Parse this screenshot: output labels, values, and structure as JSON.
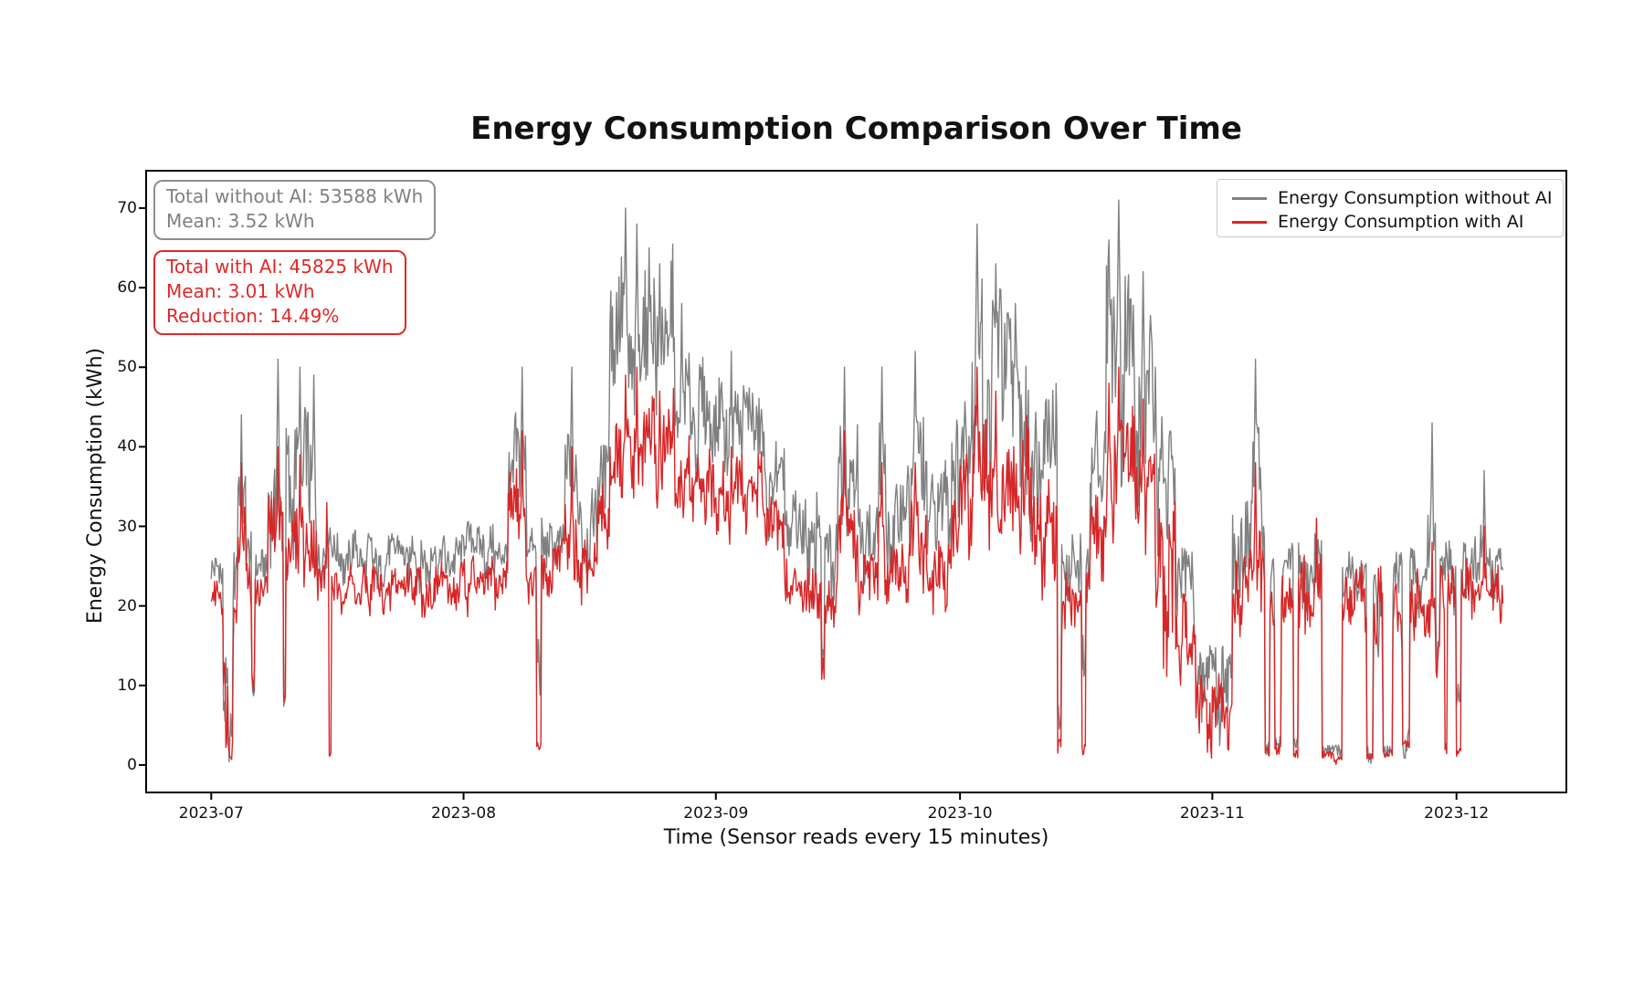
{
  "figure": {
    "title": "Energy Consumption Comparison Over Time"
  },
  "axes": {
    "xlabel": "Time (Sensor reads every 15 minutes)",
    "ylabel": "Energy Consumption (kWh)",
    "x_tick_labels": [
      "2023-07",
      "2023-08",
      "2023-09",
      "2023-10",
      "2023-11",
      "2023-12"
    ],
    "x_tick_days": [
      0,
      31,
      62,
      92,
      123,
      153
    ],
    "y_tick_values": [
      0,
      10,
      20,
      30,
      40,
      50,
      60,
      70
    ]
  },
  "annotations": {
    "without_ai": {
      "line1": "Total without AI: 53588 kWh",
      "line2": "Mean: 3.52 kWh",
      "color": "#808080",
      "border_color": "#8e8e8e"
    },
    "with_ai": {
      "line1": "Total with AI: 45825 kWh",
      "line2": "Mean: 3.01 kWh",
      "line3": "Reduction: 14.49%",
      "color": "#e02828",
      "border_color": "#e02828"
    }
  },
  "legend": {
    "position": "upper right",
    "items": [
      {
        "label": "Energy Consumption without AI",
        "color": "#808080"
      },
      {
        "label": "Energy Consumption with AI",
        "color": "#d62728"
      }
    ]
  },
  "chart_data": {
    "type": "line",
    "title": "Energy Consumption Comparison Over Time",
    "xlabel": "Time (Sensor reads every 15 minutes)",
    "ylabel": "Energy Consumption (kWh)",
    "grid": false,
    "legend_position": "upper right",
    "x_axis": {
      "unit": "days since 2023-07-01",
      "tick_labels": [
        "2023-07",
        "2023-08",
        "2023-09",
        "2023-10",
        "2023-11",
        "2023-12"
      ],
      "tick_days": [
        0,
        31,
        62,
        92,
        123,
        153
      ],
      "xlim_days": [
        -8,
        166.5
      ],
      "data_start_day": 0,
      "data_end_day": 158.7
    },
    "ylim": [
      -3.45,
      74.7
    ],
    "sampling": {
      "description": "Sensor reads every 15 minutes (~15224 readings, 2023-07-01 to 2023-12-07). Dense noisy series encoded as piecewise envelopes [startDay,endDay,min_kWh,max_kWh] plus notable peaks [day,kWh].",
      "render_step_days": 0.1
    },
    "stats": {
      "total_without_ai_kwh": 53588,
      "mean_without_ai_kwh": 3.52,
      "total_with_ai_kwh": 45825,
      "mean_with_ai_kwh": 3.01,
      "reduction_pct": 14.49
    },
    "series": [
      {
        "name": "Energy Consumption without AI",
        "color": "#808080",
        "envelope": [
          [
            0,
            1.5,
            20,
            28
          ],
          [
            1.5,
            2.1,
            0,
            22
          ],
          [
            2.1,
            2.7,
            0,
            8
          ],
          [
            2.7,
            3.3,
            14,
            30
          ],
          [
            3.3,
            4.3,
            24,
            40
          ],
          [
            4.3,
            5.0,
            20,
            30
          ],
          [
            5.0,
            5.4,
            3,
            12
          ],
          [
            5.4,
            7.0,
            21,
            29
          ],
          [
            7.0,
            8.9,
            24,
            45
          ],
          [
            8.9,
            9.2,
            2,
            15
          ],
          [
            9.2,
            13.0,
            24,
            46
          ],
          [
            13.0,
            14.7,
            22,
            32
          ],
          [
            14.7,
            31.0,
            21,
            30
          ],
          [
            31.0,
            36.5,
            22,
            31
          ],
          [
            36.5,
            38.8,
            25,
            46
          ],
          [
            38.8,
            40.0,
            22,
            30
          ],
          [
            40.0,
            40.6,
            2,
            22
          ],
          [
            40.6,
            43.5,
            23,
            33
          ],
          [
            43.5,
            45.0,
            24,
            44
          ],
          [
            45.0,
            47.5,
            22,
            36
          ],
          [
            47.5,
            49.0,
            28,
            46
          ],
          [
            49.0,
            57.0,
            36,
            66
          ],
          [
            57.0,
            61.5,
            32,
            52
          ],
          [
            61.5,
            68.0,
            34,
            50
          ],
          [
            68.0,
            70.5,
            26,
            44
          ],
          [
            70.5,
            75.0,
            20,
            36
          ],
          [
            75.0,
            75.4,
            9,
            18
          ],
          [
            75.4,
            77.0,
            18,
            32
          ],
          [
            77.0,
            79.5,
            22,
            46
          ],
          [
            79.5,
            82.0,
            18,
            34
          ],
          [
            82.0,
            83.0,
            24,
            46
          ],
          [
            83.0,
            86.0,
            20,
            38
          ],
          [
            86.0,
            88.0,
            24,
            48
          ],
          [
            88.0,
            91.0,
            22,
            40
          ],
          [
            91.0,
            93.5,
            28,
            52
          ],
          [
            93.5,
            100.5,
            30,
            62
          ],
          [
            100.5,
            104.0,
            24,
            50
          ],
          [
            104.0,
            104.5,
            0,
            8
          ],
          [
            104.5,
            107.0,
            17,
            30
          ],
          [
            107.0,
            107.5,
            2,
            18
          ],
          [
            107.5,
            108.0,
            18,
            30
          ],
          [
            108.0,
            110.0,
            24,
            46
          ],
          [
            110.0,
            113.5,
            34,
            66
          ],
          [
            113.5,
            116.0,
            28,
            58
          ],
          [
            116.0,
            118.5,
            20,
            46
          ],
          [
            118.5,
            121.0,
            14,
            30
          ],
          [
            121.0,
            123.0,
            0,
            22
          ],
          [
            123.0,
            125.5,
            0,
            18
          ],
          [
            125.5,
            128.0,
            18,
            40
          ],
          [
            128.0,
            129.5,
            22,
            44
          ],
          [
            129.5,
            130.1,
            0,
            4
          ],
          [
            130.1,
            130.7,
            12,
            28
          ],
          [
            130.7,
            131.5,
            0,
            5
          ],
          [
            131.5,
            133.0,
            18,
            30
          ],
          [
            133.0,
            133.6,
            0,
            4
          ],
          [
            133.6,
            136.5,
            16,
            30
          ],
          [
            136.5,
            139.0,
            0,
            3
          ],
          [
            139.0,
            142.0,
            16,
            28
          ],
          [
            142.0,
            142.8,
            0,
            3
          ],
          [
            142.8,
            144.0,
            10,
            29
          ],
          [
            144.0,
            145.2,
            0,
            3
          ],
          [
            145.2,
            146.4,
            12,
            28
          ],
          [
            146.4,
            147.3,
            0,
            5
          ],
          [
            147.3,
            149.5,
            16,
            28
          ],
          [
            149.5,
            150.5,
            15,
            35
          ],
          [
            150.5,
            151.0,
            6,
            18
          ],
          [
            151.0,
            153.0,
            17,
            29
          ],
          [
            153.0,
            153.6,
            1,
            15
          ],
          [
            153.6,
            156.0,
            18,
            30
          ],
          [
            156.0,
            156.7,
            20,
            32
          ],
          [
            156.7,
            158.7,
            19,
            29
          ]
        ],
        "peaks": [
          [
            3.7,
            44
          ],
          [
            8.2,
            51
          ],
          [
            10.9,
            50
          ],
          [
            12.6,
            49
          ],
          [
            38.2,
            50
          ],
          [
            44.3,
            50
          ],
          [
            50.9,
            70
          ],
          [
            52.3,
            68
          ],
          [
            53.8,
            65
          ],
          [
            55.1,
            63
          ],
          [
            57.8,
            58
          ],
          [
            63.9,
            52
          ],
          [
            77.8,
            50
          ],
          [
            82.4,
            50
          ],
          [
            86.5,
            52
          ],
          [
            94.1,
            68
          ],
          [
            96.4,
            63
          ],
          [
            98.8,
            58
          ],
          [
            110.3,
            66
          ],
          [
            111.5,
            71
          ],
          [
            114.5,
            62
          ],
          [
            116.0,
            50
          ],
          [
            128.3,
            51
          ],
          [
            135.8,
            31
          ],
          [
            150.0,
            43
          ],
          [
            156.4,
            37
          ]
        ]
      },
      {
        "name": "Energy Consumption with AI",
        "color": "#d62728",
        "envelope": [
          [
            0,
            1.5,
            17,
            24
          ],
          [
            1.5,
            2.1,
            0,
            18
          ],
          [
            2.1,
            2.7,
            0,
            6
          ],
          [
            2.7,
            3.3,
            12,
            26
          ],
          [
            3.3,
            4.3,
            20,
            34
          ],
          [
            4.3,
            5.0,
            17,
            26
          ],
          [
            5.0,
            5.4,
            8,
            18
          ],
          [
            5.4,
            7.0,
            18,
            25
          ],
          [
            7.0,
            8.9,
            20,
            36
          ],
          [
            8.9,
            9.2,
            2,
            12
          ],
          [
            9.2,
            13.0,
            20,
            37
          ],
          [
            13.0,
            14.0,
            18,
            28
          ],
          [
            14.0,
            14.45,
            16,
            30
          ],
          [
            14.45,
            14.75,
            0,
            2
          ],
          [
            14.75,
            31.0,
            17,
            26
          ],
          [
            31.0,
            36.5,
            18,
            27
          ],
          [
            36.5,
            38.8,
            20,
            38
          ],
          [
            38.8,
            40.0,
            17,
            26
          ],
          [
            40.0,
            40.6,
            0,
            3
          ],
          [
            40.6,
            43.5,
            19,
            29
          ],
          [
            43.5,
            45.0,
            20,
            36
          ],
          [
            45.0,
            47.5,
            18,
            30
          ],
          [
            47.5,
            49.0,
            22,
            38
          ],
          [
            49.0,
            57.0,
            28,
            48
          ],
          [
            57.0,
            61.5,
            26,
            42
          ],
          [
            61.5,
            68.0,
            26,
            40
          ],
          [
            68.0,
            70.5,
            22,
            35
          ],
          [
            70.5,
            75.0,
            17,
            28
          ],
          [
            75.0,
            75.4,
            10,
            17
          ],
          [
            75.4,
            77.0,
            15,
            25
          ],
          [
            77.0,
            79.5,
            18,
            36
          ],
          [
            79.5,
            82.0,
            15,
            27
          ],
          [
            82.0,
            83.0,
            18,
            34
          ],
          [
            83.0,
            86.0,
            17,
            29
          ],
          [
            86.0,
            88.0,
            18,
            36
          ],
          [
            88.0,
            91.0,
            17,
            30
          ],
          [
            91.0,
            93.5,
            22,
            40
          ],
          [
            93.5,
            100.5,
            24,
            46
          ],
          [
            100.5,
            104.0,
            19,
            38
          ],
          [
            104.0,
            104.5,
            0,
            4
          ],
          [
            104.5,
            107.0,
            14,
            25
          ],
          [
            107.0,
            107.5,
            0,
            4
          ],
          [
            107.5,
            108.0,
            15,
            25
          ],
          [
            108.0,
            110.0,
            19,
            36
          ],
          [
            110.0,
            113.5,
            26,
            48
          ],
          [
            113.5,
            116.0,
            22,
            44
          ],
          [
            116.0,
            118.5,
            8,
            36
          ],
          [
            118.5,
            121.0,
            5,
            22
          ],
          [
            121.0,
            123.0,
            0,
            15
          ],
          [
            123.0,
            125.5,
            0,
            12
          ],
          [
            125.5,
            128.0,
            14,
            32
          ],
          [
            128.0,
            129.5,
            16,
            34
          ],
          [
            129.5,
            130.1,
            0,
            3
          ],
          [
            130.1,
            130.7,
            10,
            24
          ],
          [
            130.7,
            131.5,
            0,
            4
          ],
          [
            131.5,
            133.0,
            15,
            27
          ],
          [
            133.0,
            133.6,
            0,
            3
          ],
          [
            133.6,
            136.5,
            14,
            28
          ],
          [
            136.5,
            139.0,
            0,
            2
          ],
          [
            139.0,
            142.0,
            14,
            26
          ],
          [
            142.0,
            142.8,
            0,
            2
          ],
          [
            142.8,
            144.0,
            9,
            27
          ],
          [
            144.0,
            145.2,
            0,
            2
          ],
          [
            145.2,
            146.4,
            10,
            26
          ],
          [
            146.4,
            147.3,
            0,
            4
          ],
          [
            147.3,
            149.5,
            14,
            26
          ],
          [
            149.5,
            150.5,
            13,
            27
          ],
          [
            150.5,
            151.0,
            5,
            16
          ],
          [
            151.0,
            151.6,
            14,
            26
          ],
          [
            151.6,
            151.9,
            0,
            3
          ],
          [
            151.9,
            153.0,
            14,
            26
          ],
          [
            153.0,
            153.6,
            0,
            3
          ],
          [
            153.6,
            156.0,
            15,
            27
          ],
          [
            156.0,
            156.7,
            17,
            29
          ],
          [
            156.7,
            158.7,
            16,
            27
          ]
        ],
        "peaks": [
          [
            3.7,
            38
          ],
          [
            8.2,
            40
          ],
          [
            10.9,
            39
          ],
          [
            14.2,
            33
          ],
          [
            38.2,
            42
          ],
          [
            44.3,
            40
          ],
          [
            50.9,
            49
          ],
          [
            52.3,
            50
          ],
          [
            55.1,
            47
          ],
          [
            63.9,
            40
          ],
          [
            77.8,
            42
          ],
          [
            82.4,
            38
          ],
          [
            86.5,
            38
          ],
          [
            94.1,
            50
          ],
          [
            96.4,
            47
          ],
          [
            110.3,
            48
          ],
          [
            111.5,
            50
          ],
          [
            114.5,
            46
          ],
          [
            128.3,
            38
          ],
          [
            135.8,
            31
          ],
          [
            150.0,
            28
          ],
          [
            156.4,
            30
          ]
        ]
      }
    ]
  }
}
